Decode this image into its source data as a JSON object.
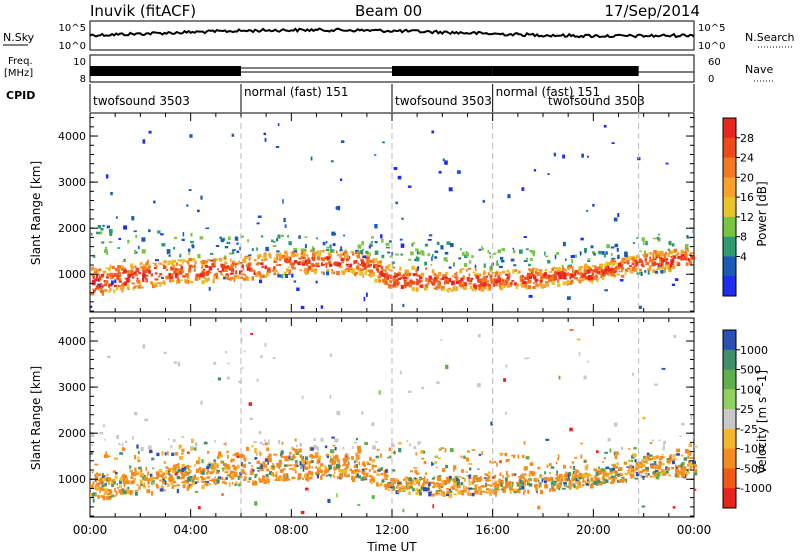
{
  "header": {
    "title": "Inuvik (fitACF)",
    "beam": "Beam 00",
    "date": "17/Sep/2014"
  },
  "panels": {
    "nsky_label": "N.Sky",
    "nsky_ticks": [
      "10^5",
      "10^0"
    ],
    "nsearch_label": "N.Search",
    "nsearch_ticks": [
      "10^5",
      "10^0"
    ],
    "freq_label": "Freq.",
    "freq_unit": "[MHz]",
    "freq_ticks": [
      "10",
      "8"
    ],
    "nave_label": "Nave",
    "nave_ticks": [
      "60",
      "0"
    ],
    "cpid_label": "CPID"
  },
  "cpid_segments": [
    {
      "label": "twofsound 3503",
      "start": 0.0,
      "end": 6.0,
      "row": 1
    },
    {
      "label": "normal (fast) 151",
      "start": 6.0,
      "end": 12.0,
      "row": 0
    },
    {
      "label": "twofsound 3503",
      "start": 12.0,
      "end": 16.0,
      "row": 1
    },
    {
      "label": "normal (fast) 151",
      "start": 16.0,
      "end": 21.8,
      "row": 0
    },
    {
      "label": "twofsound 3503",
      "start": 16.0,
      "end": 21.8,
      "row": 1
    }
  ],
  "axes": {
    "x_ticks": [
      "00:00",
      "04:00",
      "08:00",
      "12:00",
      "16:00",
      "20:00",
      "00:00"
    ],
    "x_title": "Time UT",
    "y_title": "Slant Range [km]",
    "y_ticks": [
      "1000",
      "2000",
      "3000",
      "4000"
    ]
  },
  "power_scale": {
    "title": "Power [dB]",
    "labels": [
      "28",
      "24",
      "20",
      "16",
      "12",
      "8",
      "4"
    ],
    "colors": [
      "#e8261e",
      "#f04a1c",
      "#f5781e",
      "#f9a12a",
      "#e6c42a",
      "#7ac443",
      "#2d9a6f",
      "#1c5ab8",
      "#1e2ef0"
    ]
  },
  "velocity_scale": {
    "title": "Velocity [m s^-1]",
    "labels": [
      "1000",
      "500",
      "100",
      "25",
      "-25",
      "-100",
      "-500",
      "-1000"
    ],
    "colors": [
      "#2a4fb5",
      "#3f8f6a",
      "#5fb04b",
      "#8fd05f",
      "#c8c8c8",
      "#f5b62a",
      "#f58a1e",
      "#f25a14",
      "#e8231c"
    ]
  },
  "chart_data": {
    "type": "heatmap",
    "xlabel": "Time UT",
    "ylabel": "Slant Range [km]",
    "xlim": [
      0,
      24
    ],
    "ylim": [
      180,
      4500
    ],
    "backscatter_band": {
      "hours": [
        0,
        2,
        4,
        6,
        8,
        10,
        11,
        12,
        13,
        14,
        16,
        18,
        20,
        22,
        24
      ],
      "center_km": [
        850,
        1000,
        1100,
        1150,
        1300,
        1300,
        1250,
        900,
        880,
        880,
        900,
        950,
        1050,
        1300,
        1350
      ],
      "lower_km": [
        500,
        650,
        780,
        850,
        950,
        1000,
        900,
        700,
        650,
        620,
        650,
        700,
        850,
        1000,
        1050
      ],
      "upper_km": [
        2100,
        2000,
        1900,
        1850,
        1900,
        1950,
        1900,
        1950,
        1900,
        1800,
        1600,
        1550,
        1650,
        1850,
        2000
      ]
    },
    "power_panel": {
      "colorbar": "Power [dB]",
      "range_db": [
        0,
        30
      ]
    },
    "velocity_panel": {
      "colorbar": "Velocity [m s^-1]",
      "range": [
        -1000,
        1000
      ]
    }
  }
}
